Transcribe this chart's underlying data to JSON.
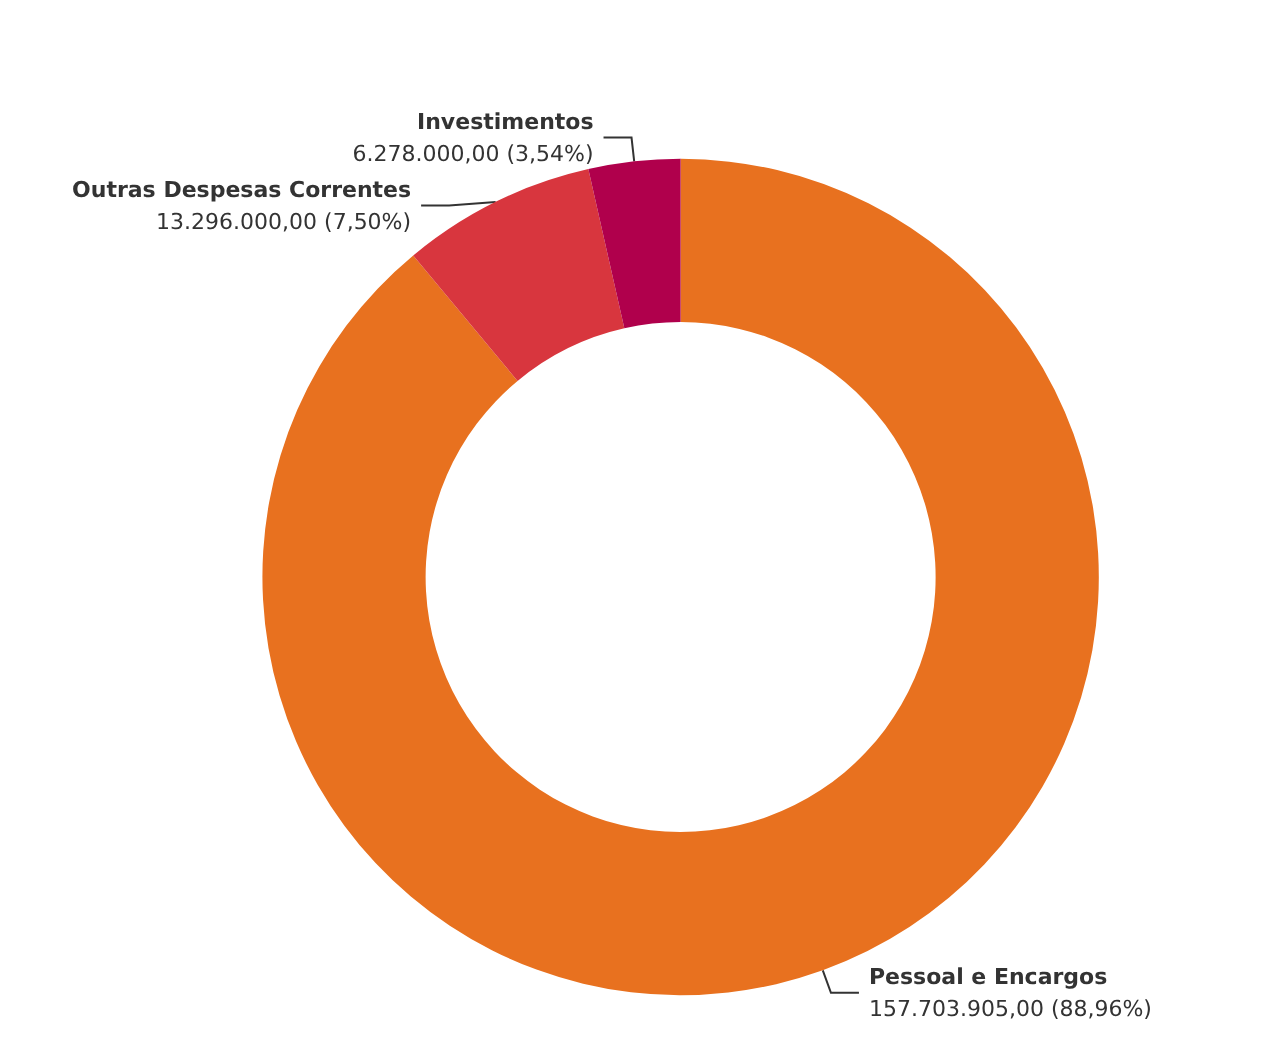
{
  "chart_data": {
    "type": "donut",
    "categories": [
      "Pessoal e Encargos",
      "Outras Despesas Correntes",
      "Investimentos"
    ],
    "values": [
      157703905,
      13296000,
      6278000
    ],
    "colors": [
      "#e8711f",
      "#d8363e",
      "#b0004c"
    ],
    "value_labels": [
      "157.703.905,00 (88,96%)",
      "13.296.000,00 (7,50%)",
      "6.278.000,00 (3,54%)"
    ],
    "legend": false
  }
}
